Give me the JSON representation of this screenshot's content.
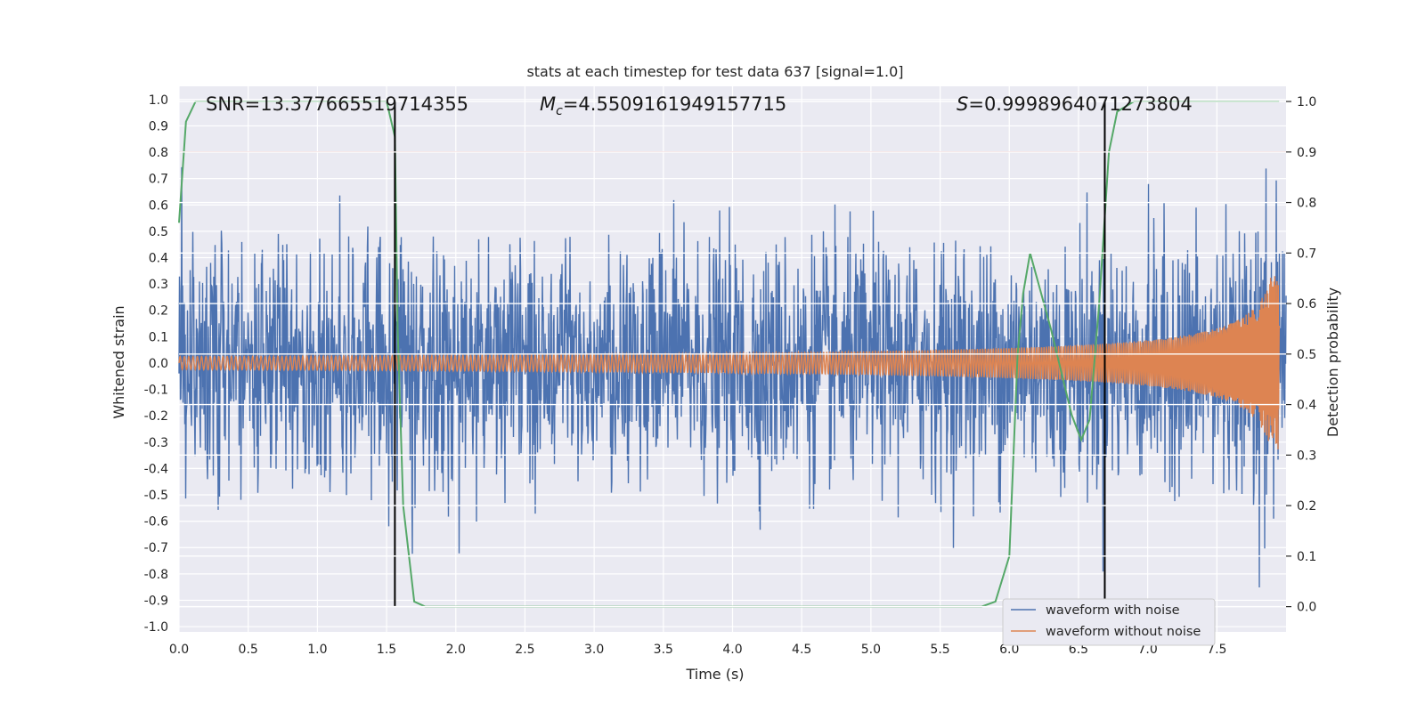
{
  "chart_data": {
    "type": "line",
    "title": "stats at each timestep for test data 637 [signal=1.0]",
    "xlabel": "Time (s)",
    "ylabel_left": "Whitened strain",
    "ylabel_right": "Detection probability",
    "xlim": [
      0,
      8
    ],
    "ylim_left": [
      -1.02,
      1.05
    ],
    "ylim_right": [
      -0.05,
      1.03
    ],
    "xticks": [
      "0.0",
      "0.5",
      "1.0",
      "1.5",
      "2.0",
      "2.5",
      "3.0",
      "3.5",
      "4.0",
      "4.5",
      "5.0",
      "5.5",
      "6.0",
      "6.5",
      "7.0",
      "7.5"
    ],
    "yticks_left": [
      "1.0",
      "0.9",
      "0.8",
      "0.7",
      "0.6",
      "0.5",
      "0.4",
      "0.3",
      "0.2",
      "0.1",
      "0.0",
      "-0.1",
      "-0.2",
      "-0.3",
      "-0.4",
      "-0.5",
      "-0.6",
      "-0.7",
      "-0.8",
      "-0.9",
      "-1.0"
    ],
    "yticks_right": [
      "1.0",
      "0.9",
      "0.8",
      "0.7",
      "0.6",
      "0.5",
      "0.4",
      "0.3",
      "0.2",
      "0.1",
      "0.0"
    ],
    "annotations": {
      "snr": "SNR=13.377665519714355",
      "mc_symbol": "M",
      "mc_sub": "c",
      "mc_value": "=4.5509161949157715",
      "s_symbol": "S",
      "s_value": "=0.9998964071273804"
    },
    "threshold": {
      "axis": "right",
      "value": 0.9,
      "color": "#c44e52"
    },
    "vlines": {
      "x": [
        1.56,
        6.69
      ],
      "color": "#000000"
    },
    "legend": {
      "position": "lower right",
      "entries": [
        {
          "label": "waveform with noise",
          "color": "#4c72b0"
        },
        {
          "label": "waveform without noise",
          "color": "#dd8452"
        }
      ]
    },
    "series": [
      {
        "name": "waveform with noise",
        "axis": "left",
        "color": "#4c72b0",
        "noise_std": 0.22,
        "duration_s": 8,
        "note": "whitened noisy strain"
      },
      {
        "name": "waveform without noise",
        "axis": "left",
        "color": "#dd8452",
        "amplitude_start": 0.025,
        "amplitude_peak": 0.33,
        "chirp_end_s": 7.95
      },
      {
        "name": "detection probability",
        "axis": "right",
        "color": "#55a868",
        "x": [
          0.0,
          0.05,
          0.12,
          0.3,
          1.5,
          1.56,
          1.58,
          1.62,
          1.7,
          1.78,
          5.8,
          5.9,
          6.0,
          6.06,
          6.1,
          6.15,
          6.3,
          6.45,
          6.52,
          6.58,
          6.65,
          6.72,
          6.78,
          6.9,
          7.95
        ],
        "y": [
          0.76,
          0.96,
          1.0,
          1.0,
          1.0,
          0.93,
          0.55,
          0.2,
          0.01,
          0.0,
          0.0,
          0.01,
          0.1,
          0.5,
          0.62,
          0.7,
          0.55,
          0.38,
          0.33,
          0.37,
          0.6,
          0.9,
          0.98,
          1.0,
          1.0
        ]
      }
    ]
  }
}
